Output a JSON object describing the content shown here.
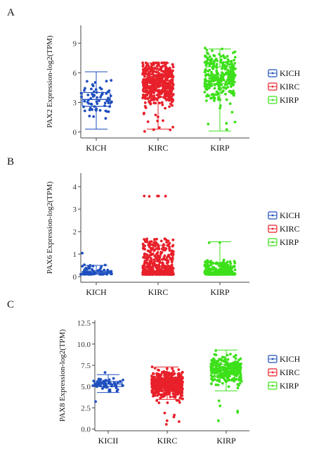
{
  "colors": {
    "KICH": "#1f4fbf",
    "KIRC": "#e8202a",
    "KIRP": "#3de01a"
  },
  "chart_data": [
    {
      "panel": "A",
      "type": "box+jitter",
      "ylabel": "PAX2 Expression-log2(TPM)",
      "categories": [
        "KICH",
        "KIRC",
        "KIRP"
      ],
      "yticks": [
        0,
        3,
        6,
        9
      ],
      "ylim": [
        -0.6,
        10.8
      ],
      "legend": [
        "KICH",
        "KIRC",
        "KIRP"
      ],
      "legend_position": "right",
      "series": [
        {
          "name": "KICH",
          "min": 0.3,
          "q1": 2.6,
          "median": 3.3,
          "q3": 4.0,
          "max": 6.1,
          "n": 66,
          "lo": 0.2,
          "hi": 6.0
        },
        {
          "name": "KIRC",
          "min": 0.3,
          "q1": 4.1,
          "median": 5.0,
          "q3": 5.6,
          "max": 7.0,
          "n": 520,
          "lo": 0.0,
          "hi": 7.0
        },
        {
          "name": "KIRP",
          "min": 0.1,
          "q1": 4.9,
          "median": 5.8,
          "q3": 6.6,
          "max": 8.4,
          "n": 290,
          "lo": 0.0,
          "hi": 8.5
        }
      ]
    },
    {
      "panel": "B",
      "type": "box+jitter",
      "ylabel": "PAX6 Expression-log2(TPM)",
      "categories": [
        "KICH",
        "KIRC",
        "KIRP"
      ],
      "yticks": [
        0,
        1,
        2,
        3,
        4
      ],
      "ylim": [
        -0.25,
        4.6
      ],
      "legend": [
        "KICH",
        "KIRC",
        "KIRP"
      ],
      "legend_position": "right",
      "series": [
        {
          "name": "KICH",
          "min": 0.1,
          "q1": 0.15,
          "median": 0.2,
          "q3": 0.25,
          "max": 0.5,
          "n": 66,
          "lo": 0.1,
          "hi": 1.1
        },
        {
          "name": "KIRC",
          "min": 0.1,
          "q1": 0.2,
          "median": 0.45,
          "q3": 0.75,
          "max": 1.4,
          "n": 520,
          "lo": 0.1,
          "hi": 3.8
        },
        {
          "name": "KIRP",
          "min": 0.1,
          "q1": 0.12,
          "median": 0.17,
          "q3": 0.22,
          "max": 1.55,
          "n": 290,
          "lo": 0.1,
          "hi": 1.6
        }
      ]
    },
    {
      "panel": "C",
      "type": "box+jitter",
      "ylabel": "PAX8 Expression-log2(TPM)",
      "categories": [
        "KICH",
        "KIRC",
        "KIRP"
      ],
      "category_labels": [
        "KICII",
        "KIRC",
        "KIRP"
      ],
      "yticks": [
        0.0,
        2.5,
        5.0,
        7.5,
        10.0,
        12.5
      ],
      "ytick_labels": [
        "0.0",
        "2.5",
        "5.0",
        "7.5",
        "10.0",
        "12.5"
      ],
      "ylim": [
        -0.2,
        12.8
      ],
      "legend": [
        "KICH",
        "KIRC",
        "KIRP"
      ],
      "legend_position": "right",
      "series": [
        {
          "name": "KICH",
          "min": 4.3,
          "q1": 5.0,
          "median": 5.3,
          "q3": 5.6,
          "max": 6.4,
          "n": 66,
          "lo": 3.2,
          "hi": 7.4
        },
        {
          "name": "KIRC",
          "min": 3.5,
          "q1": 4.8,
          "median": 5.3,
          "q3": 5.8,
          "max": 7.3,
          "n": 520,
          "lo": 0.2,
          "hi": 7.6
        },
        {
          "name": "KIRP",
          "min": 4.5,
          "q1": 6.5,
          "median": 7.0,
          "q3": 7.6,
          "max": 9.3,
          "n": 290,
          "lo": 0.8,
          "hi": 9.3
        }
      ]
    }
  ]
}
